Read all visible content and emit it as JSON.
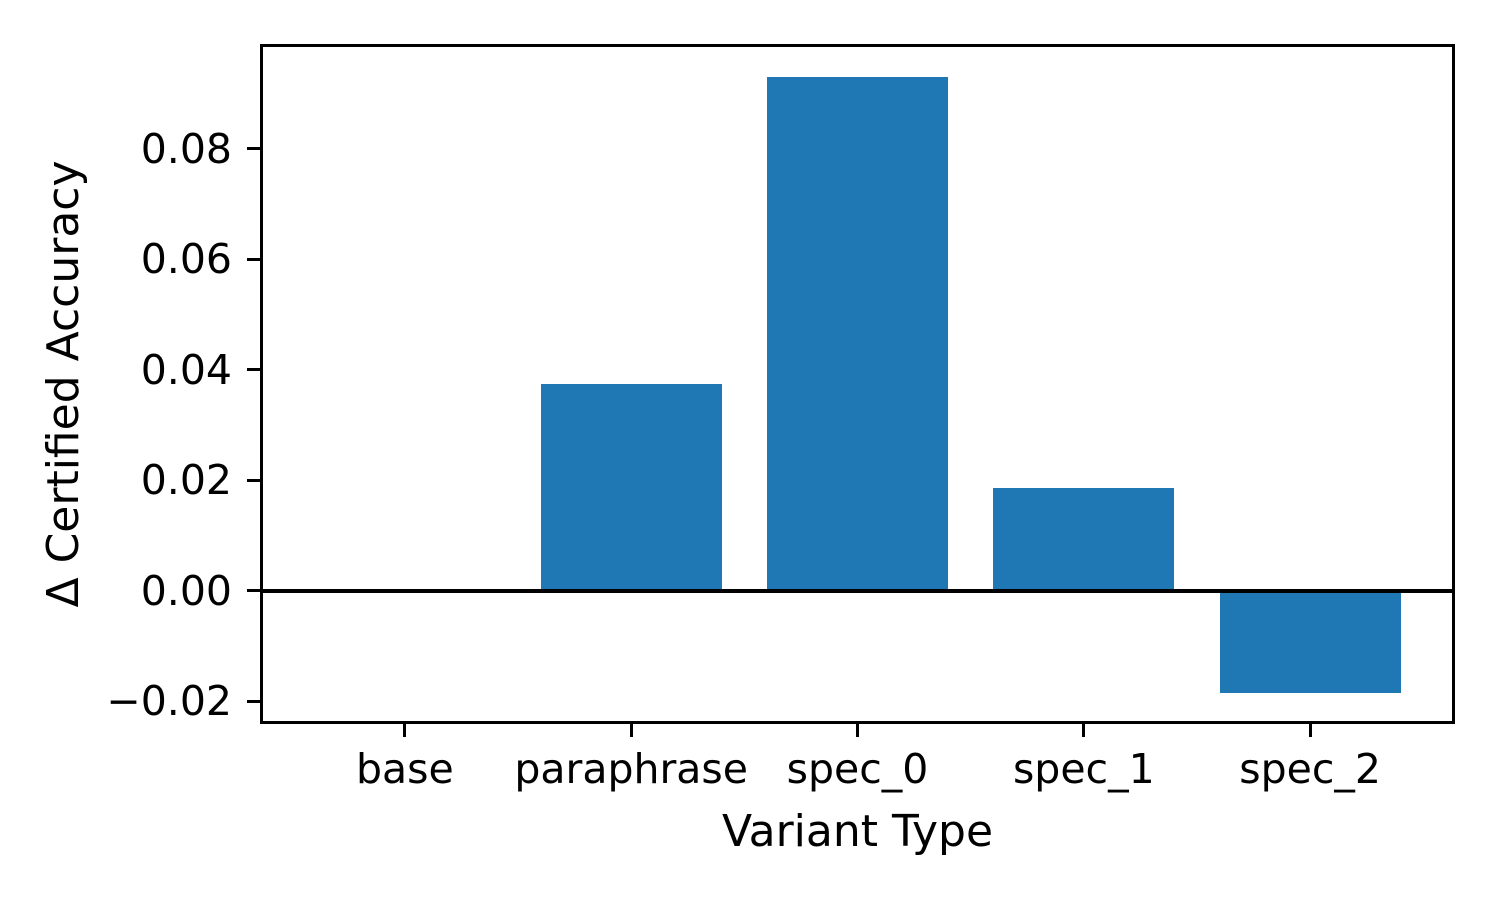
{
  "figure": {
    "background": "#ffffff",
    "text_color": "#000000"
  },
  "chart_data": {
    "type": "bar",
    "title": "",
    "xlabel": "Variant Type",
    "ylabel": "Δ Certified Accuracy",
    "categories": [
      "base",
      "paraphrase",
      "spec_0",
      "spec_1",
      "spec_2"
    ],
    "values": [
      0.0,
      0.0375,
      0.093,
      0.0186,
      -0.0185
    ],
    "bar_color": "#1f77b4",
    "bar_rel_width": 0.8,
    "xlim": [
      -0.64,
      4.64
    ],
    "ylim": [
      -0.0241,
      0.099
    ],
    "yticks": [
      0.08,
      0.06,
      0.04,
      0.02,
      0.0,
      -0.02
    ],
    "ytick_labels": [
      "0.08",
      "0.06",
      "0.04",
      "0.02",
      "0.00",
      "−0.02"
    ],
    "zero_line": true,
    "grid": false,
    "legend": "none",
    "axis_color": "#000000"
  }
}
